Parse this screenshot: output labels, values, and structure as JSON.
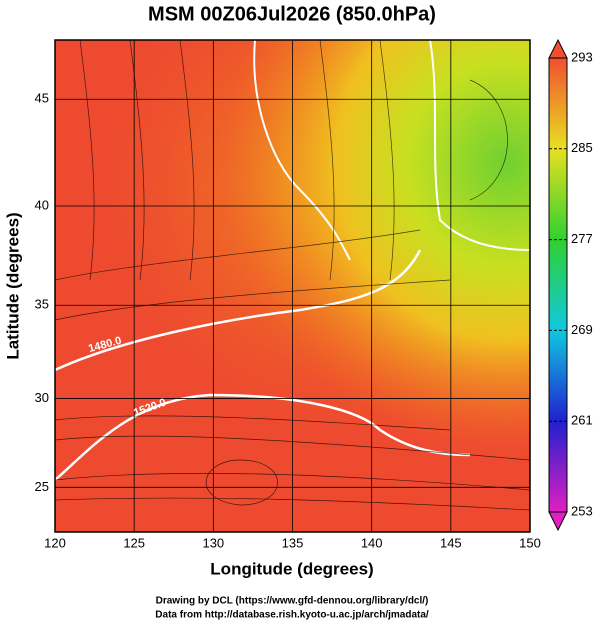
{
  "chart_data": {
    "type": "map",
    "title": "MSM 00Z06Jul2026 (850.0hPa)",
    "x_label": "Longitude (degrees)",
    "y_label": "Latitude  (degrees)",
    "projection": "mercator",
    "xlim": [
      120,
      150
    ],
    "xticks": [
      120,
      125,
      130,
      135,
      140,
      145,
      150
    ],
    "ylim": [
      22.4,
      47.6
    ],
    "yticks": [
      25,
      30,
      35,
      40,
      45
    ],
    "grid": true,
    "annotations": [
      "1480.0",
      "1520.0"
    ],
    "colorbar": {
      "lim": [
        253,
        293
      ],
      "ticks": [
        253,
        261,
        269,
        277,
        285,
        293
      ],
      "colors": [
        "#e020c0",
        "#2020d0",
        "#10c8e0",
        "#30d030",
        "#e8e020",
        "#f05030"
      ]
    },
    "footer": [
      "Drawing by DCL (https://www.gfd-dennou.org/library/dcl/)",
      "Data from http://database.rish.kyoto-u.ac.jp/arch/jmadata/"
    ]
  }
}
